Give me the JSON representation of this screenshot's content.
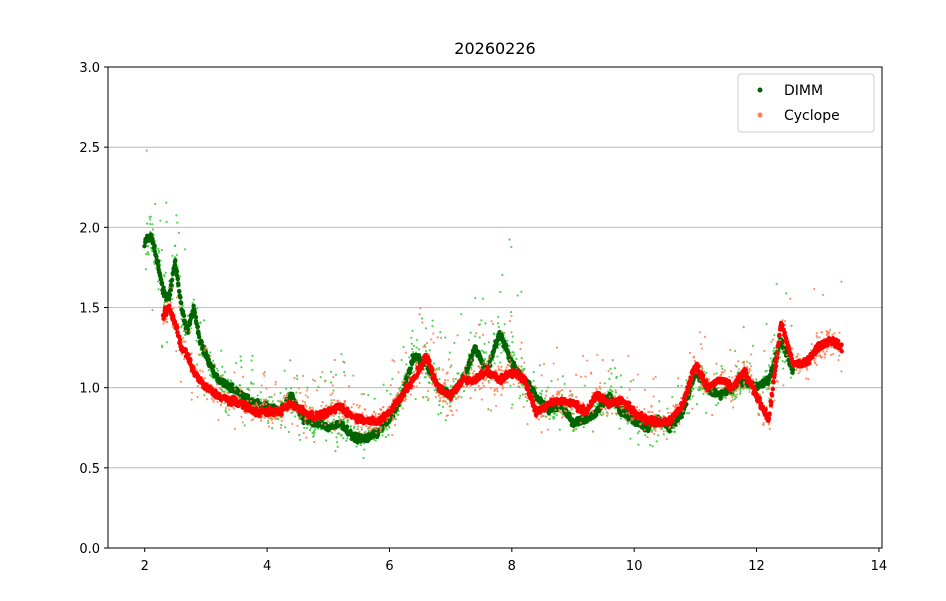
{
  "chart_data": {
    "type": "scatter",
    "title": "20260226",
    "xlabel": "",
    "ylabel": "",
    "xlim": [
      1.4,
      14.05
    ],
    "ylim": [
      0.0,
      3.0
    ],
    "xticks": [
      2,
      4,
      6,
      8,
      10,
      12,
      14
    ],
    "yticks": [
      0.0,
      0.5,
      1.0,
      1.5,
      2.0,
      2.5,
      3.0
    ],
    "ytick_labels": [
      "0.0",
      "0.5",
      "1.0",
      "1.5",
      "2.0",
      "2.5",
      "3.0"
    ],
    "grid": "horizontal",
    "legend_position": "top-right",
    "series": [
      {
        "name": "DIMM",
        "color": "#006400",
        "scatter_color": "#32cd32",
        "x": [
          2.0,
          2.1,
          2.2,
          2.3,
          2.4,
          2.5,
          2.6,
          2.7,
          2.8,
          2.9,
          3.0,
          3.2,
          3.4,
          3.6,
          3.8,
          4.0,
          4.2,
          4.4,
          4.6,
          4.8,
          5.0,
          5.2,
          5.4,
          5.6,
          5.8,
          6.0,
          6.2,
          6.4,
          6.6,
          6.8,
          7.0,
          7.2,
          7.4,
          7.6,
          7.8,
          8.0,
          8.2,
          8.4,
          8.6,
          8.8,
          9.0,
          9.2,
          9.4,
          9.6,
          9.8,
          10.0,
          10.2,
          10.4,
          10.6,
          10.8,
          11.0,
          11.2,
          11.4,
          11.6,
          11.8,
          12.0,
          12.2,
          12.4,
          12.6
        ],
        "y": [
          1.9,
          1.95,
          1.8,
          1.6,
          1.55,
          1.8,
          1.5,
          1.35,
          1.5,
          1.3,
          1.2,
          1.05,
          1.0,
          0.95,
          0.9,
          0.88,
          0.85,
          0.95,
          0.8,
          0.78,
          0.75,
          0.78,
          0.7,
          0.68,
          0.72,
          0.8,
          0.95,
          1.2,
          1.15,
          1.0,
          0.95,
          1.05,
          1.25,
          1.1,
          1.35,
          1.15,
          1.05,
          0.95,
          0.85,
          0.9,
          0.78,
          0.8,
          0.85,
          0.95,
          0.85,
          0.8,
          0.75,
          0.8,
          0.75,
          0.85,
          1.1,
          1.0,
          0.95,
          1.0,
          1.05,
          1.0,
          1.05,
          1.3,
          1.1
        ],
        "range_low": [
          1.3,
          1.4,
          1.3,
          1.2,
          1.2,
          1.3,
          1.1,
          1.1,
          1.1,
          1.0,
          0.9,
          0.85,
          0.8,
          0.75,
          0.72,
          0.7,
          0.7,
          0.72,
          0.65,
          0.62,
          0.6,
          0.6,
          0.58,
          0.55,
          0.58,
          0.65,
          0.75,
          0.9,
          0.9,
          0.8,
          0.78,
          0.8,
          0.9,
          0.85,
          0.95,
          0.85,
          0.8,
          0.78,
          0.7,
          0.72,
          0.65,
          0.65,
          0.7,
          0.78,
          0.7,
          0.65,
          0.62,
          0.65,
          0.62,
          0.7,
          0.85,
          0.8,
          0.78,
          0.8,
          0.85,
          0.8,
          0.85,
          0.95,
          0.9
        ],
        "range_high": [
          2.65,
          2.3,
          2.2,
          2.0,
          2.45,
          2.45,
          2.0,
          1.8,
          1.75,
          1.55,
          1.45,
          1.3,
          1.25,
          1.2,
          1.2,
          1.15,
          1.15,
          1.3,
          1.1,
          1.1,
          1.05,
          1.4,
          1.05,
          1.0,
          1.0,
          1.15,
          1.35,
          1.55,
          1.6,
          1.45,
          1.3,
          1.5,
          1.95,
          1.6,
          1.9,
          2.05,
          1.5,
          1.2,
          1.1,
          1.15,
          1.0,
          1.05,
          1.1,
          1.2,
          1.1,
          1.05,
          1.0,
          1.0,
          1.0,
          1.05,
          1.45,
          1.25,
          1.2,
          1.3,
          1.4,
          1.3,
          1.45,
          1.85,
          1.35
        ]
      },
      {
        "name": "Cyclope",
        "color": "#ff0000",
        "scatter_color": "#ff7f50",
        "x": [
          2.3,
          2.4,
          2.5,
          2.6,
          2.7,
          2.8,
          2.9,
          3.0,
          3.2,
          3.4,
          3.6,
          3.8,
          4.0,
          4.2,
          4.4,
          4.6,
          4.8,
          5.0,
          5.2,
          5.4,
          5.6,
          5.8,
          6.0,
          6.2,
          6.4,
          6.6,
          6.8,
          7.0,
          7.2,
          7.4,
          7.6,
          7.8,
          8.0,
          8.2,
          8.4,
          8.6,
          8.8,
          9.0,
          9.2,
          9.4,
          9.6,
          9.8,
          10.0,
          10.2,
          10.4,
          10.6,
          10.8,
          11.0,
          11.2,
          11.4,
          11.6,
          11.8,
          12.0,
          12.2,
          12.4,
          12.6,
          12.8,
          13.0,
          13.2,
          13.4
        ],
        "y": [
          1.45,
          1.5,
          1.4,
          1.25,
          1.2,
          1.1,
          1.05,
          1.0,
          0.95,
          0.92,
          0.9,
          0.85,
          0.85,
          0.85,
          0.9,
          0.85,
          0.82,
          0.85,
          0.88,
          0.82,
          0.8,
          0.78,
          0.85,
          0.95,
          1.05,
          1.2,
          1.0,
          0.95,
          1.05,
          1.05,
          1.1,
          1.05,
          1.1,
          1.05,
          0.85,
          0.9,
          0.92,
          0.9,
          0.85,
          0.95,
          0.9,
          0.92,
          0.85,
          0.8,
          0.78,
          0.8,
          0.9,
          1.15,
          1.0,
          1.05,
          1.0,
          1.1,
          0.95,
          0.8,
          1.4,
          1.15,
          1.15,
          1.25,
          1.3,
          1.25
        ],
        "range_low": [
          1.1,
          1.2,
          1.15,
          1.0,
          0.95,
          0.9,
          0.85,
          0.82,
          0.78,
          0.75,
          0.72,
          0.7,
          0.68,
          0.7,
          0.72,
          0.68,
          0.65,
          0.68,
          0.7,
          0.65,
          0.62,
          0.6,
          0.68,
          0.75,
          0.85,
          0.95,
          0.8,
          0.78,
          0.85,
          0.8,
          0.85,
          0.8,
          0.85,
          0.8,
          0.65,
          0.72,
          0.75,
          0.72,
          0.68,
          0.75,
          0.72,
          0.72,
          0.68,
          0.62,
          0.55,
          0.55,
          0.7,
          0.9,
          0.8,
          0.82,
          0.78,
          0.85,
          0.7,
          0.55,
          1.0,
          0.95,
          0.95,
          1.0,
          1.05,
          1.0
        ],
        "range_high": [
          1.7,
          1.7,
          1.6,
          1.5,
          1.45,
          1.35,
          1.3,
          1.25,
          1.2,
          1.15,
          1.12,
          1.1,
          1.1,
          1.12,
          1.2,
          1.1,
          1.1,
          1.15,
          1.2,
          1.1,
          1.15,
          1.1,
          1.2,
          1.3,
          1.45,
          1.65,
          1.35,
          1.8,
          1.4,
          1.45,
          1.5,
          1.45,
          1.5,
          1.45,
          1.15,
          1.25,
          1.3,
          1.25,
          1.2,
          1.3,
          1.25,
          1.3,
          1.2,
          1.15,
          1.1,
          1.1,
          1.25,
          1.45,
          1.3,
          1.35,
          1.4,
          1.5,
          1.4,
          1.3,
          1.8,
          1.5,
          1.5,
          1.7,
          1.75,
          1.8
        ]
      }
    ]
  }
}
